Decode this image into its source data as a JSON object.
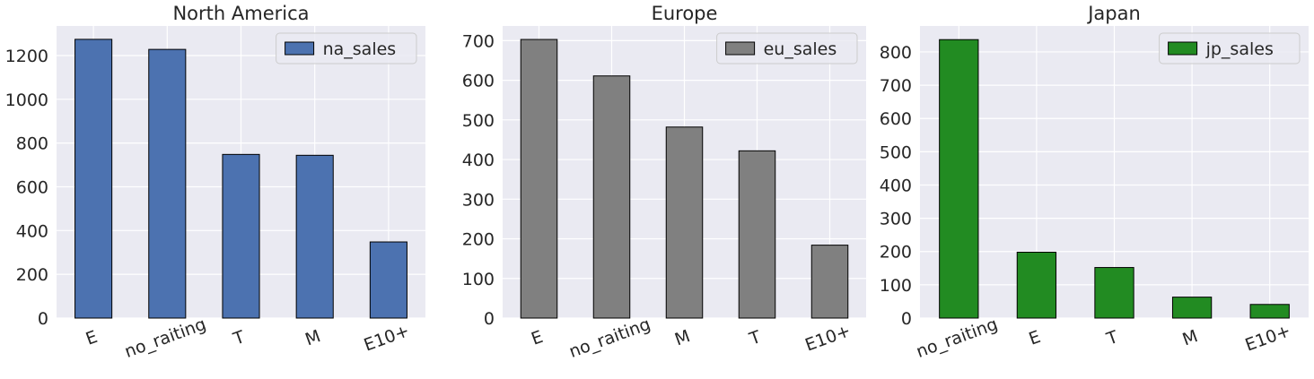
{
  "chart_data": [
    {
      "type": "bar",
      "title": "North America",
      "categories": [
        "E",
        "no_raiting",
        "T",
        "M",
        "E10+"
      ],
      "series": [
        {
          "name": "na_sales",
          "values": [
            1274,
            1228,
            748,
            744,
            348
          ],
          "color": "#4C72B0"
        }
      ],
      "yticks": [
        0,
        200,
        400,
        600,
        800,
        1000,
        1200
      ],
      "ylim": [
        0,
        1335
      ],
      "xlabel": "",
      "ylabel": "",
      "grid": true,
      "legend": "top-right",
      "background": "#EAEAF2"
    },
    {
      "type": "bar",
      "title": "Europe",
      "categories": [
        "E",
        "no_raiting",
        "M",
        "T",
        "E10+"
      ],
      "series": [
        {
          "name": "eu_sales",
          "values": [
            703,
            611,
            482,
            422,
            184
          ],
          "color": "#808080"
        }
      ],
      "yticks": [
        0,
        100,
        200,
        300,
        400,
        500,
        600,
        700
      ],
      "ylim": [
        0,
        737
      ],
      "xlabel": "",
      "ylabel": "",
      "grid": true,
      "legend": "top-right",
      "background": "#EAEAF2"
    },
    {
      "type": "bar",
      "title": "Japan",
      "categories": [
        "no_raiting",
        "E",
        "T",
        "M",
        "E10+"
      ],
      "series": [
        {
          "name": "jp_sales",
          "values": [
            837,
            198,
            152,
            63,
            41
          ],
          "color": "#228B22"
        }
      ],
      "yticks": [
        0,
        100,
        200,
        300,
        400,
        500,
        600,
        700,
        800
      ],
      "ylim": [
        0,
        878
      ],
      "xlabel": "",
      "ylabel": "",
      "grid": true,
      "legend": "top-right",
      "background": "#EAEAF2"
    }
  ]
}
